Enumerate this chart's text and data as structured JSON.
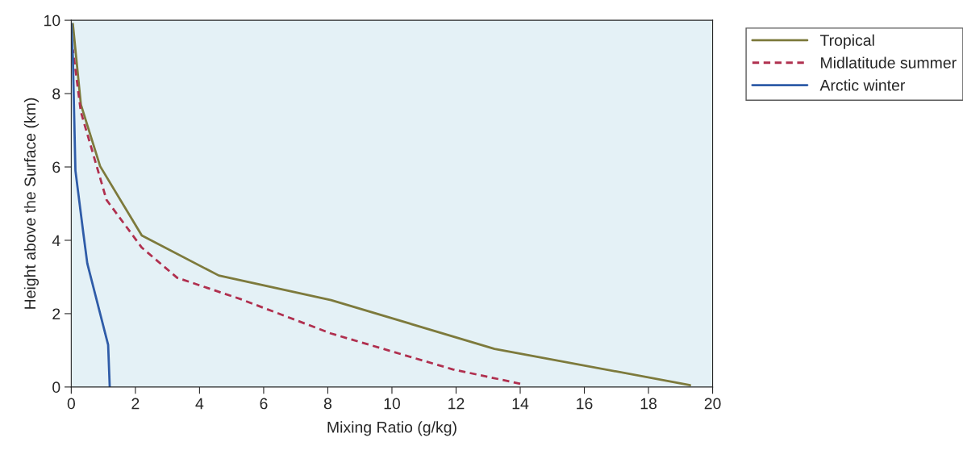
{
  "chart_data": {
    "type": "line",
    "xlabel": "Mixing Ratio (g/kg)",
    "ylabel": "Height above the Surface (km)",
    "xlim": [
      0,
      20
    ],
    "ylim": [
      0,
      10
    ],
    "xticks": [
      0,
      2,
      4,
      6,
      8,
      10,
      12,
      14,
      16,
      18,
      20
    ],
    "yticks": [
      0,
      2,
      4,
      6,
      8,
      10
    ],
    "grid": false,
    "legend": "top right",
    "series": [
      {
        "name": "Tropical",
        "color": "#7d7a3c",
        "line_style": "solid",
        "x": [
          19.3,
          13.2,
          8.1,
          4.6,
          2.2,
          0.9,
          0.3,
          0.05
        ],
        "values": [
          0.05,
          1.04,
          2.37,
          3.04,
          4.13,
          6.02,
          7.7,
          9.9
        ]
      },
      {
        "name": "Midlatitude summer",
        "color": "#b0304f",
        "line_style": "dashed",
        "x": [
          14.0,
          11.9,
          8.1,
          5.3,
          3.3,
          2.2,
          1.1,
          0.3,
          0.05
        ],
        "values": [
          0.09,
          0.48,
          1.46,
          2.39,
          2.98,
          3.8,
          5.1,
          7.5,
          9.2
        ]
      },
      {
        "name": "Arctic winter",
        "color": "#2f5ca8",
        "line_style": "solid",
        "x": [
          1.2,
          1.15,
          0.5,
          0.38,
          0.13,
          0.05,
          0.0
        ],
        "values": [
          0.0,
          1.15,
          3.37,
          4.17,
          5.9,
          9.0,
          9.9
        ]
      }
    ]
  }
}
